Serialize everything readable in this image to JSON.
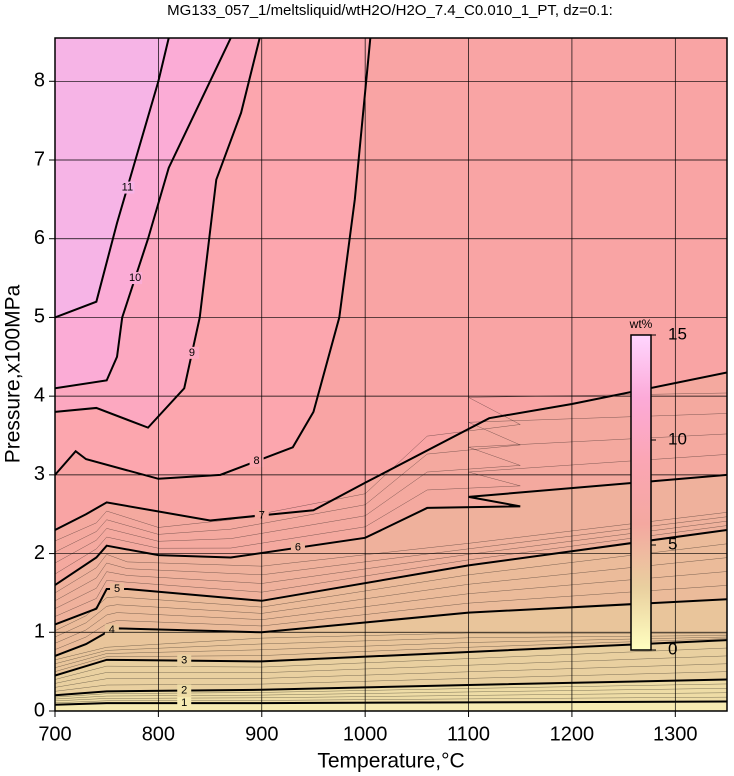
{
  "chart_data": {
    "type": "contour",
    "title": "MG133_057_1/meltsliquid/wtH2O/H2O_7.4_C0.010_1_PT, dz=0.1:",
    "xlabel": "Temperature,°C",
    "ylabel": "Pressure,x100MPa",
    "xlim": [
      700,
      1350
    ],
    "ylim": [
      0,
      8.55
    ],
    "xticks": [
      700,
      800,
      900,
      1000,
      1100,
      1200,
      1300
    ],
    "yticks": [
      0,
      1,
      2,
      3,
      4,
      5,
      6,
      7,
      8
    ],
    "grid": true,
    "background": "#f9a4a4",
    "contours": [
      {
        "level": 1,
        "color": "#f6eab2",
        "x": [
          700,
          750,
          900,
          1100,
          1350
        ],
        "y": [
          0.08,
          0.1,
          0.1,
          0.11,
          0.12
        ]
      },
      {
        "level": 2,
        "color": "#eedca6",
        "x": [
          700,
          750,
          900,
          1100,
          1350
        ],
        "y": [
          0.2,
          0.25,
          0.27,
          0.33,
          0.4
        ]
      },
      {
        "level": 3,
        "color": "#e9d0a0",
        "x": [
          700,
          750,
          900,
          1100,
          1350
        ],
        "y": [
          0.45,
          0.65,
          0.63,
          0.75,
          0.9
        ]
      },
      {
        "level": 4,
        "color": "#e9c59b",
        "x": [
          700,
          730,
          750,
          760,
          900,
          1100,
          1350
        ],
        "y": [
          0.7,
          0.85,
          1.0,
          1.05,
          1.0,
          1.25,
          1.42
        ]
      },
      {
        "level": 5,
        "color": "#ebbb9a",
        "x": [
          700,
          740,
          750,
          770,
          900,
          1100,
          1350
        ],
        "y": [
          1.1,
          1.3,
          1.55,
          1.55,
          1.4,
          1.85,
          2.3
        ]
      },
      {
        "level": 6,
        "color": "#efb19c",
        "x": [
          700,
          740,
          750,
          800,
          870,
          1000,
          1060,
          1150,
          1100,
          1350
        ],
        "y": [
          1.6,
          1.95,
          2.1,
          1.98,
          1.95,
          2.2,
          2.58,
          2.6,
          2.72,
          3.0
        ]
      },
      {
        "level": 7,
        "color": "#f4a99f",
        "x": [
          700,
          730,
          750,
          850,
          950,
          1000,
          1120,
          1200,
          1350
        ],
        "y": [
          2.3,
          2.5,
          2.65,
          2.42,
          2.55,
          2.9,
          3.72,
          3.9,
          4.3
        ]
      },
      {
        "level": 8,
        "color": "#fca6ae",
        "x": [
          700,
          720,
          730,
          800,
          860,
          930,
          950,
          975,
          990,
          1005
        ],
        "y": [
          3.0,
          3.3,
          3.2,
          2.95,
          3.0,
          3.35,
          3.8,
          5.0,
          6.5,
          8.55
        ]
      },
      {
        "level": 9,
        "color": "#fca8c0",
        "x": [
          700,
          740,
          790,
          825,
          840,
          856,
          880,
          898
        ],
        "y": [
          3.8,
          3.85,
          3.6,
          4.1,
          5.0,
          6.75,
          7.6,
          8.55
        ]
      },
      {
        "level": 10,
        "color": "#fbacd6",
        "x": [
          700,
          750,
          760,
          765,
          790,
          810,
          850,
          870
        ],
        "y": [
          4.1,
          4.2,
          4.5,
          5.0,
          6.0,
          6.9,
          8.0,
          8.55
        ]
      },
      {
        "level": 11,
        "color": "#f6b4e6",
        "x": [
          700,
          740,
          760,
          780,
          800,
          810
        ],
        "y": [
          5.0,
          5.2,
          6.2,
          7.1,
          8.0,
          8.55
        ]
      }
    ],
    "colorbar": {
      "label": "wt%",
      "lim": [
        0,
        15
      ],
      "ticks": [
        0,
        5,
        10,
        15
      ],
      "colors": [
        "#ffffc0",
        "#e9cf9f",
        "#f4a8a0",
        "#fba6b4",
        "#fcaad8",
        "#ffd6ff"
      ]
    }
  }
}
